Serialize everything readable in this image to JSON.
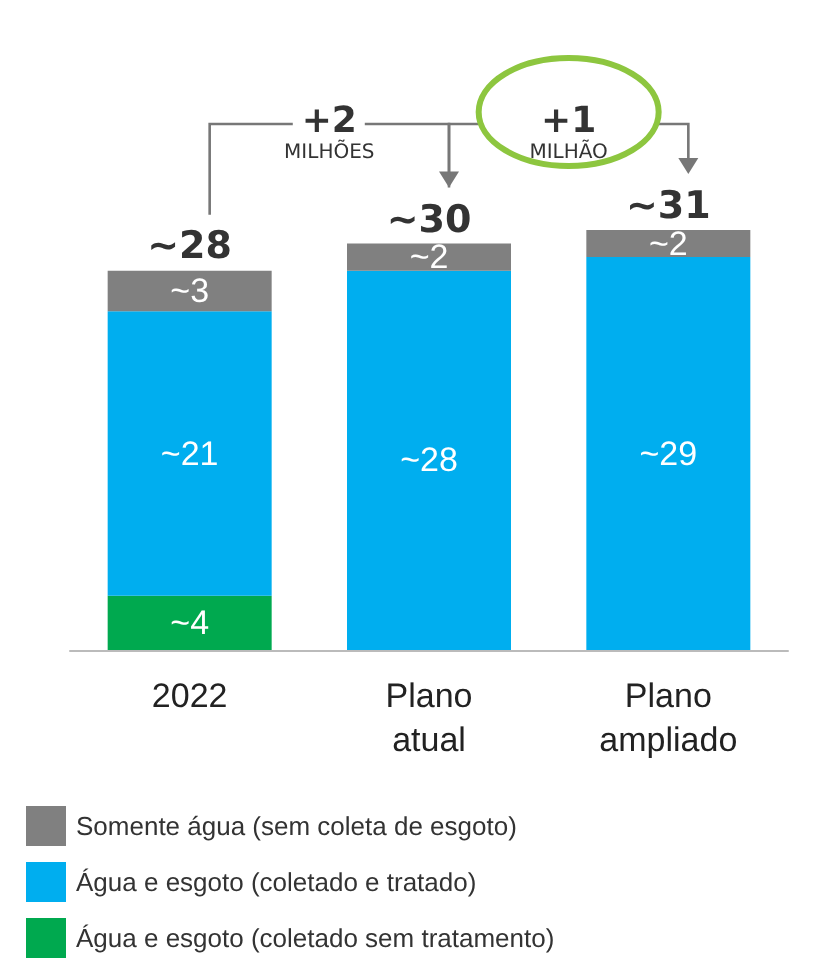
{
  "chart_data": {
    "type": "bar",
    "stacked": true,
    "categories": [
      "2022",
      "Plano\natual",
      "Plano\nampliado"
    ],
    "series": [
      {
        "name": "Água e esgoto (coletado sem tratamento)",
        "color": "#00a94f",
        "values": [
          4,
          null,
          null
        ],
        "value_labels": [
          "~4",
          null,
          null
        ]
      },
      {
        "name": "Água e esgoto (coletado e tratado)",
        "color": "#00aeef",
        "values": [
          21,
          28,
          29
        ],
        "value_labels": [
          "~21",
          "~28",
          "~29"
        ]
      },
      {
        "name": "Somente água (sem coleta de esgoto)",
        "color": "#808080",
        "values": [
          3,
          2,
          2
        ],
        "value_labels": [
          "~3",
          "~2",
          "~2"
        ]
      }
    ],
    "totals": [
      "~28",
      "~30",
      "~31"
    ],
    "annotations": [
      "+2 MILHÕES",
      "+1 MILHÃO"
    ],
    "legend": "bottom"
  }
}
